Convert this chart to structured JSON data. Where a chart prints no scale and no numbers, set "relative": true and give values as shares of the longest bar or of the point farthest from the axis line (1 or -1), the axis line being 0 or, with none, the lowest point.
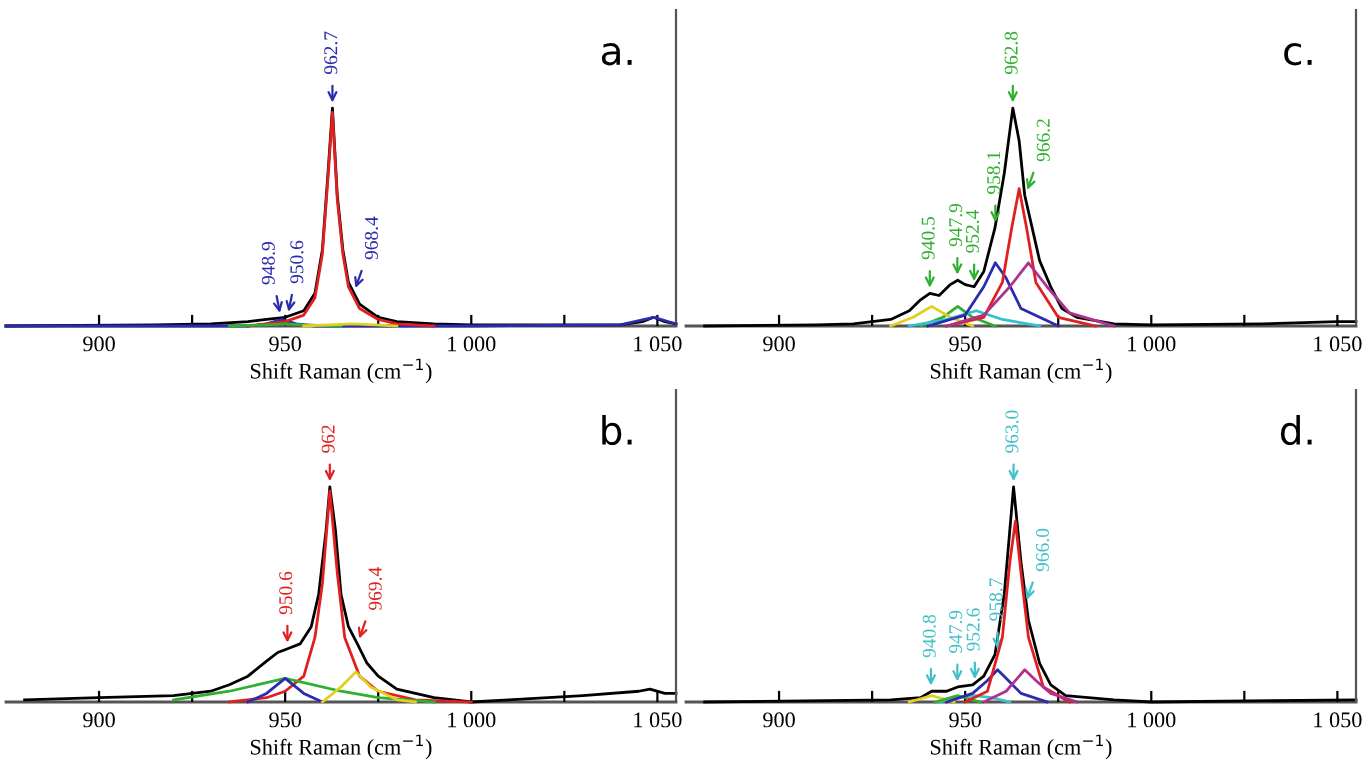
{
  "chart_data": [
    {
      "type": "line",
      "relative": true,
      "title": "a.",
      "xlabel": "Shift Raman (cm$^{−1}$)",
      "xlim": [
        875,
        1055
      ],
      "xticks": [
        900,
        {
          "value": 925,
          "label": null
        },
        950,
        {
          "value": 975,
          "label": null
        },
        {
          "value": 1000,
          "label": "1 000"
        },
        {
          "value": 1025,
          "label": null
        },
        {
          "value": 1050,
          "label": "1 050"
        }
      ],
      "tick_labels": "x",
      "grid": false,
      "legend": false,
      "series": [
        {
          "color": "#000000",
          "x": [
            875,
            915,
            930,
            940,
            945,
            950,
            955,
            958,
            960,
            961.5,
            962.7,
            964,
            965.5,
            967,
            970,
            975,
            980,
            990,
            1000,
            1040,
            1046,
            1049,
            1052,
            1055
          ],
          "values": [
            0,
            0.005,
            0.01,
            0.02,
            0.03,
            0.04,
            0.07,
            0.15,
            0.35,
            0.7,
            1.0,
            0.6,
            0.35,
            0.2,
            0.1,
            0.04,
            0.02,
            0.01,
            0.005,
            0.005,
            0.02,
            0.04,
            0.02,
            0.01
          ]
        },
        {
          "color": "#2b2bb0",
          "x": [
            875,
            940,
            945,
            949,
            953,
            958,
            1000,
            1040,
            1049,
            1055
          ],
          "values": [
            0,
            0,
            0.01,
            0.03,
            0.01,
            0,
            0,
            0.005,
            0.04,
            0.01
          ]
        },
        {
          "color": "#e02020",
          "x": [
            940,
            950,
            955,
            958,
            960,
            961.5,
            962.7,
            964,
            965.5,
            967,
            970,
            975,
            980,
            990
          ],
          "values": [
            0,
            0.02,
            0.05,
            0.13,
            0.33,
            0.68,
            0.98,
            0.58,
            0.33,
            0.18,
            0.08,
            0.03,
            0.01,
            0
          ]
        },
        {
          "color": "#30b030",
          "x": [
            935,
            945,
            950,
            955,
            965
          ],
          "values": [
            0,
            0.005,
            0.01,
            0.005,
            0
          ]
        },
        {
          "color": "#e0d020",
          "x": [
            955,
            962,
            968,
            974,
            980
          ],
          "values": [
            0,
            0.005,
            0.01,
            0.005,
            0
          ]
        }
      ],
      "annotations": [
        {
          "text": "962.7",
          "x": 962.7,
          "y": 1.0
        },
        {
          "text": "948.9",
          "x": 948.9,
          "y": 0.035
        },
        {
          "text": "950.6",
          "x": 950.6,
          "y": 0.04
        },
        {
          "text": "968.4",
          "x": 968.4,
          "y": 0.15
        }
      ]
    },
    {
      "type": "line",
      "relative": true,
      "title": "c.",
      "xlabel": "Shift Raman (cm$^{−1}$)",
      "xlim": [
        875,
        1055
      ],
      "xticks": [
        900,
        {
          "value": 925,
          "label": null
        },
        950,
        {
          "value": 975,
          "label": null
        },
        {
          "value": 1000,
          "label": "1 000"
        },
        {
          "value": 1025,
          "label": null
        },
        {
          "value": 1050,
          "label": "1 050"
        }
      ],
      "tick_labels": "x",
      "grid": false,
      "legend": false,
      "series": [
        {
          "color": "#000000",
          "x": [
            880,
            910,
            920,
            930,
            935,
            938,
            940.5,
            943,
            946,
            948,
            950,
            952.4,
            955,
            958,
            960.5,
            962.8,
            964.5,
            966,
            968,
            970,
            973,
            976,
            980,
            990,
            1000,
            1030,
            1050,
            1055
          ],
          "values": [
            0,
            0.005,
            0.01,
            0.03,
            0.07,
            0.12,
            0.15,
            0.14,
            0.19,
            0.21,
            0.19,
            0.18,
            0.25,
            0.45,
            0.7,
            1.0,
            0.85,
            0.6,
            0.45,
            0.3,
            0.18,
            0.08,
            0.04,
            0.01,
            0.005,
            0.01,
            0.02,
            0.02
          ]
        },
        {
          "color": "#30b030",
          "x": [
            938,
            944,
            948,
            952,
            958
          ],
          "values": [
            0,
            0.04,
            0.09,
            0.04,
            0
          ]
        },
        {
          "color": "#e0d020",
          "x": [
            930,
            936,
            941,
            946,
            952
          ],
          "values": [
            0,
            0.04,
            0.09,
            0.04,
            0
          ]
        },
        {
          "color": "#30c0d0",
          "x": [
            935,
            945,
            953,
            960,
            970
          ],
          "values": [
            0,
            0.03,
            0.07,
            0.03,
            0
          ]
        },
        {
          "color": "#2b2bb0",
          "x": [
            940,
            950,
            955,
            958.1,
            961,
            965,
            975
          ],
          "values": [
            0,
            0.05,
            0.18,
            0.29,
            0.22,
            0.08,
            0
          ]
        },
        {
          "color": "#e02020",
          "x": [
            945,
            955,
            960,
            962.5,
            964.5,
            966.5,
            969,
            975,
            985
          ],
          "values": [
            0,
            0.04,
            0.2,
            0.45,
            0.63,
            0.45,
            0.2,
            0.04,
            0
          ]
        },
        {
          "color": "#b03090",
          "x": [
            945,
            955,
            962,
            967,
            972,
            978,
            990
          ],
          "values": [
            0,
            0.05,
            0.18,
            0.29,
            0.18,
            0.06,
            0
          ]
        }
      ],
      "annotations": [
        {
          "text": "940.5",
          "x": 940.5,
          "y": 0.15
        },
        {
          "text": "947.9",
          "x": 947.9,
          "y": 0.21
        },
        {
          "text": "952.4",
          "x": 952.4,
          "y": 0.18
        },
        {
          "text": "958.1",
          "x": 958.1,
          "y": 0.45
        },
        {
          "text": "962.8",
          "x": 962.8,
          "y": 1.0
        },
        {
          "text": "966.2",
          "x": 966.2,
          "y": 0.6
        }
      ]
    },
    {
      "type": "line",
      "relative": true,
      "title": "b.",
      "xlabel": "Shift Raman (cm$^{−1}$)",
      "xlim": [
        875,
        1055
      ],
      "xticks": [
        900,
        {
          "value": 925,
          "label": null
        },
        950,
        {
          "value": 975,
          "label": null
        },
        {
          "value": 1000,
          "label": "1 000"
        },
        {
          "value": 1025,
          "label": null
        },
        {
          "value": 1050,
          "label": "1 050"
        }
      ],
      "tick_labels": "x",
      "grid": false,
      "legend": false,
      "series": [
        {
          "color": "#000000",
          "x": [
            880,
            900,
            920,
            930,
            935,
            940,
            945,
            948,
            951,
            954,
            957,
            959,
            961,
            962,
            963.5,
            965,
            967,
            969.4,
            972,
            975,
            980,
            990,
            1000,
            1010,
            1030,
            1045,
            1048,
            1052,
            1055
          ],
          "values": [
            0.01,
            0.02,
            0.03,
            0.05,
            0.08,
            0.12,
            0.19,
            0.23,
            0.25,
            0.27,
            0.35,
            0.5,
            0.8,
            1.0,
            0.8,
            0.5,
            0.35,
            0.27,
            0.18,
            0.12,
            0.06,
            0.02,
            0,
            0.01,
            0.03,
            0.05,
            0.06,
            0.04,
            0.04
          ]
        },
        {
          "color": "#e02020",
          "x": [
            935,
            945,
            950,
            955,
            958,
            960,
            962,
            964,
            966,
            970,
            975,
            985,
            1000
          ],
          "values": [
            0,
            0.02,
            0.05,
            0.12,
            0.3,
            0.55,
            0.98,
            0.6,
            0.3,
            0.12,
            0.05,
            0.01,
            0
          ]
        },
        {
          "color": "#30b030",
          "x": [
            920,
            935,
            945,
            950,
            955,
            965,
            975,
            990
          ],
          "values": [
            0.01,
            0.05,
            0.09,
            0.11,
            0.09,
            0.05,
            0.02,
            0
          ]
        },
        {
          "color": "#2b2bb0",
          "x": [
            940,
            945,
            950,
            955,
            960
          ],
          "values": [
            0,
            0.04,
            0.11,
            0.04,
            0
          ]
        },
        {
          "color": "#e0d020",
          "x": [
            960,
            965,
            969,
            973,
            980,
            985
          ],
          "values": [
            0,
            0.07,
            0.14,
            0.07,
            0.01,
            0
          ]
        }
      ],
      "annotations": [
        {
          "text": "962",
          "x": 962,
          "y": 1.0
        },
        {
          "text": "950.6",
          "x": 950.6,
          "y": 0.25
        },
        {
          "text": "969.4",
          "x": 969.4,
          "y": 0.27
        }
      ]
    },
    {
      "type": "line",
      "relative": true,
      "title": "d.",
      "xlabel": "Shift Raman (cm$^{−1}$)",
      "xlim": [
        875,
        1055
      ],
      "xticks": [
        900,
        {
          "value": 925,
          "label": null
        },
        950,
        {
          "value": 975,
          "label": null
        },
        {
          "value": 1000,
          "label": "1 000"
        },
        {
          "value": 1025,
          "label": null
        },
        {
          "value": 1050,
          "label": "1 050"
        }
      ],
      "tick_labels": "x",
      "grid": false,
      "legend": false,
      "series": [
        {
          "color": "#000000",
          "x": [
            880,
            930,
            938,
            941,
            945,
            948,
            952,
            955,
            958,
            960.5,
            963,
            965,
            967,
            970,
            973,
            977,
            990,
            1000,
            1055
          ],
          "values": [
            0,
            0.01,
            0.02,
            0.05,
            0.05,
            0.07,
            0.08,
            0.12,
            0.22,
            0.5,
            1.0,
            0.65,
            0.38,
            0.18,
            0.08,
            0.03,
            0.01,
            0,
            0.01
          ]
        },
        {
          "color": "#40c0c8",
          "x": [
            943,
            948,
            952.6,
            957,
            962
          ],
          "values": [
            0,
            0.02,
            0.03,
            0.02,
            0
          ]
        },
        {
          "color": "#e0d020",
          "x": [
            935,
            938,
            941,
            944,
            947
          ],
          "values": [
            0,
            0.015,
            0.03,
            0.015,
            0
          ]
        },
        {
          "color": "#30b030",
          "x": [
            942,
            945,
            948,
            951,
            954
          ],
          "values": [
            0,
            0.015,
            0.03,
            0.015,
            0
          ]
        },
        {
          "color": "#2b2bb0",
          "x": [
            945,
            952,
            956,
            958.7,
            961,
            965,
            972
          ],
          "values": [
            0,
            0.04,
            0.1,
            0.15,
            0.11,
            0.04,
            0
          ]
        },
        {
          "color": "#e02020",
          "x": [
            950,
            956,
            960,
            962,
            963.5,
            965,
            967,
            971,
            978
          ],
          "values": [
            0,
            0.05,
            0.3,
            0.65,
            0.84,
            0.6,
            0.3,
            0.07,
            0
          ]
        },
        {
          "color": "#b03090",
          "x": [
            955,
            961,
            964,
            966,
            969,
            973,
            980
          ],
          "values": [
            0,
            0.05,
            0.11,
            0.15,
            0.1,
            0.04,
            0
          ]
        }
      ],
      "annotations": [
        {
          "text": "940.8",
          "x": 940.8,
          "y": 0.05
        },
        {
          "text": "947.9",
          "x": 947.9,
          "y": 0.07
        },
        {
          "text": "952.6",
          "x": 952.6,
          "y": 0.08
        },
        {
          "text": "958.7",
          "x": 958.7,
          "y": 0.22
        },
        {
          "text": "963.0",
          "x": 963.0,
          "y": 1.0
        },
        {
          "text": "966.0",
          "x": 966.0,
          "y": 0.45
        }
      ]
    }
  ]
}
